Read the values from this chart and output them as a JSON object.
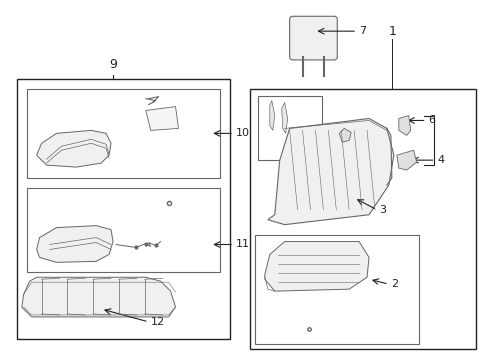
{
  "bg_color": "#ffffff",
  "line_color": "#666666",
  "dark_line": "#222222",
  "fig_width": 4.89,
  "fig_height": 3.6,
  "dpi": 100
}
